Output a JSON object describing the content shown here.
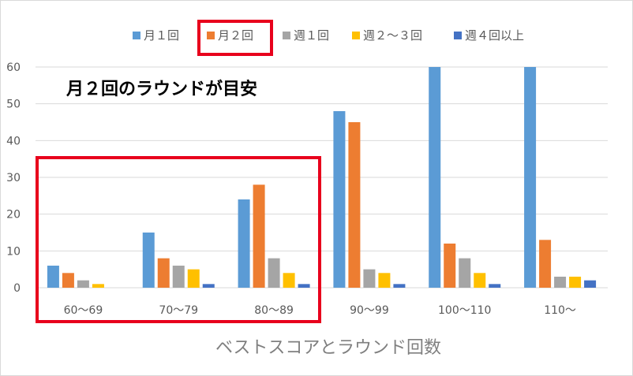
{
  "chart_data": {
    "type": "bar",
    "title": "",
    "xlabel": "ベストスコアとラウンド回数",
    "ylabel": "",
    "ylim": [
      0,
      60
    ],
    "yticks": [
      "0",
      "10",
      "20",
      "30",
      "40",
      "50",
      "60"
    ],
    "grid": true,
    "legend_position": "top",
    "categories": [
      "60～69",
      "70～79",
      "80～89",
      "90～99",
      "100～110",
      "110～"
    ],
    "series": [
      {
        "name": "月１回",
        "color": "#5b9bd5",
        "values": [
          6,
          15,
          24,
          48,
          60,
          60
        ]
      },
      {
        "name": "月２回",
        "color": "#ed7d31",
        "values": [
          4,
          8,
          28,
          45,
          12,
          13
        ]
      },
      {
        "name": "週１回",
        "color": "#a5a5a5",
        "values": [
          2,
          6,
          8,
          5,
          8,
          3
        ]
      },
      {
        "name": "週２～３回",
        "color": "#ffc000",
        "values": [
          1,
          5,
          4,
          4,
          4,
          3
        ]
      },
      {
        "name": "週４回以上",
        "color": "#4472c4",
        "values": [
          0,
          1,
          1,
          1,
          1,
          2
        ]
      }
    ],
    "annotation": "月２回のラウンドが目安",
    "highlight_color": "#e8001c"
  }
}
